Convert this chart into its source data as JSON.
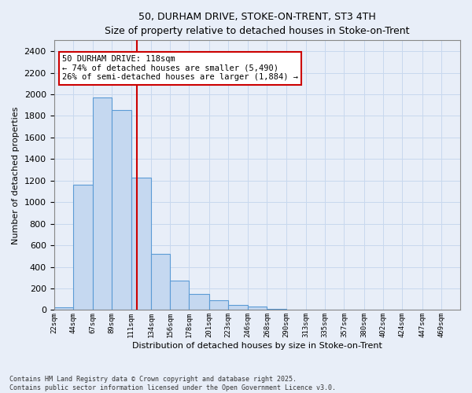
{
  "title_line1": "50, DURHAM DRIVE, STOKE-ON-TRENT, ST3 4TH",
  "title_line2": "Size of property relative to detached houses in Stoke-on-Trent",
  "xlabel": "Distribution of detached houses by size in Stoke-on-Trent",
  "ylabel": "Number of detached properties",
  "bar_left_edges": [
    22,
    44,
    67,
    89,
    111,
    134,
    156,
    178,
    201,
    223,
    246,
    268,
    290,
    313,
    335,
    357,
    380,
    402,
    424,
    447
  ],
  "bar_widths": [
    22,
    23,
    22,
    22,
    23,
    22,
    22,
    23,
    22,
    23,
    22,
    22,
    23,
    22,
    22,
    23,
    22,
    22,
    23,
    22
  ],
  "bar_heights": [
    25,
    1160,
    1970,
    1855,
    1230,
    520,
    275,
    150,
    90,
    50,
    35,
    12,
    5,
    5,
    2,
    1,
    1,
    1,
    1,
    1
  ],
  "tick_labels": [
    "22sqm",
    "44sqm",
    "67sqm",
    "89sqm",
    "111sqm",
    "134sqm",
    "156sqm",
    "178sqm",
    "201sqm",
    "223sqm",
    "246sqm",
    "268sqm",
    "290sqm",
    "313sqm",
    "335sqm",
    "357sqm",
    "380sqm",
    "402sqm",
    "424sqm",
    "447sqm",
    "469sqm"
  ],
  "bar_color": "#c5d8f0",
  "bar_edge_color": "#5b9bd5",
  "grid_color": "#c8d8ee",
  "background_color": "#e8eef8",
  "red_line_x": 118,
  "annotation_text": "50 DURHAM DRIVE: 118sqm\n← 74% of detached houses are smaller (5,490)\n26% of semi-detached houses are larger (1,884) →",
  "annotation_box_color": "#ffffff",
  "annotation_box_edge": "#cc0000",
  "footer_line1": "Contains HM Land Registry data © Crown copyright and database right 2025.",
  "footer_line2": "Contains public sector information licensed under the Open Government Licence v3.0.",
  "ylim": [
    0,
    2500
  ],
  "yticks": [
    0,
    200,
    400,
    600,
    800,
    1000,
    1200,
    1400,
    1600,
    1800,
    2000,
    2200,
    2400
  ]
}
